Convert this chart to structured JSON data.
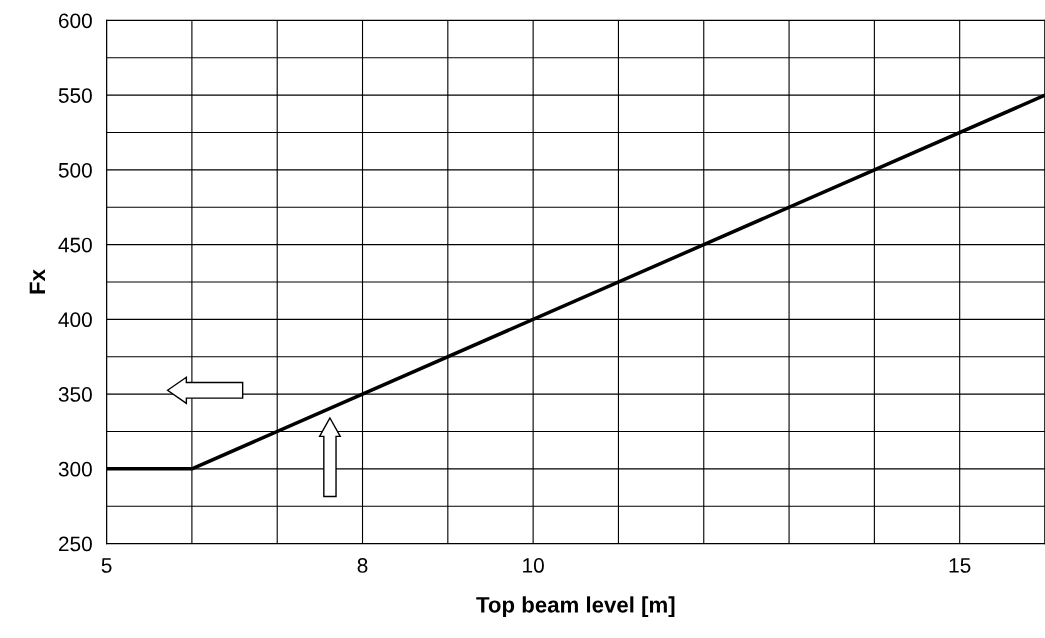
{
  "chart_data": {
    "type": "line",
    "xlabel": "Top beam level [m]",
    "ylabel": "Fx",
    "x": [
      5,
      6,
      16
    ],
    "series": [
      {
        "color": "#000000",
        "values": [
          300,
          300,
          550
        ]
      }
    ],
    "xlim": [
      5,
      16
    ],
    "ylim": [
      250,
      600
    ],
    "xticks": [
      5,
      {
        "value": 6,
        "label": null
      },
      {
        "value": 7,
        "label": null
      },
      8,
      {
        "value": 9,
        "label": null
      },
      10,
      {
        "value": 11,
        "label": null
      },
      {
        "value": 12,
        "label": null
      },
      {
        "value": 13,
        "label": null
      },
      {
        "value": 14,
        "label": null
      },
      15,
      {
        "value": 16,
        "label": null
      }
    ],
    "yticks": [
      250,
      {
        "value": 275,
        "label": null
      },
      300,
      {
        "value": 325,
        "label": null
      },
      350,
      {
        "value": 375,
        "label": null
      },
      400,
      {
        "value": 425,
        "label": null
      },
      450,
      {
        "value": 475,
        "label": null
      },
      500,
      {
        "value": 525,
        "label": null
      },
      550,
      {
        "value": 575,
        "label": null
      },
      600
    ],
    "grid": true,
    "marker": "none",
    "line_style": "solid",
    "legend": false
  }
}
